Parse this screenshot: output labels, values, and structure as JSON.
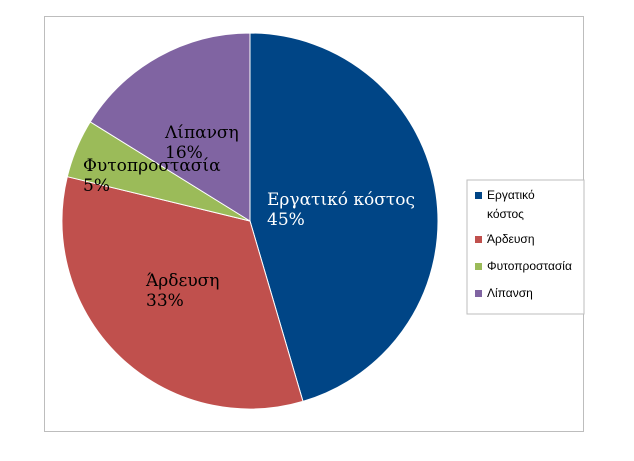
{
  "chart_data": {
    "type": "pie",
    "slices": [
      {
        "label": "Εργατικό κόστος",
        "legend_lines": [
          "Εργατικό",
          "κόστος"
        ],
        "value": 45,
        "value_label": "45%",
        "color": "#004586",
        "label_color": "#ffffff"
      },
      {
        "label": "Άρδευση",
        "legend_lines": [
          "Άρδευση"
        ],
        "value": 33,
        "value_label": "33%",
        "color": "#c0504d",
        "label_color": "#000000"
      },
      {
        "label": "Φυτοπροστασία",
        "legend_lines": [
          "Φυτοπροστασία"
        ],
        "value": 5,
        "value_label": "5%",
        "color": "#9bbb59",
        "label_color": "#000000"
      },
      {
        "label": "Λίπανση",
        "legend_lines": [
          "Λίπανση"
        ],
        "value": 16,
        "value_label": "16%",
        "color": "#8064a2",
        "label_color": "#000000"
      }
    ],
    "start_angle_deg": 0,
    "direction": "clockwise",
    "legend_position": "right",
    "title": ""
  }
}
